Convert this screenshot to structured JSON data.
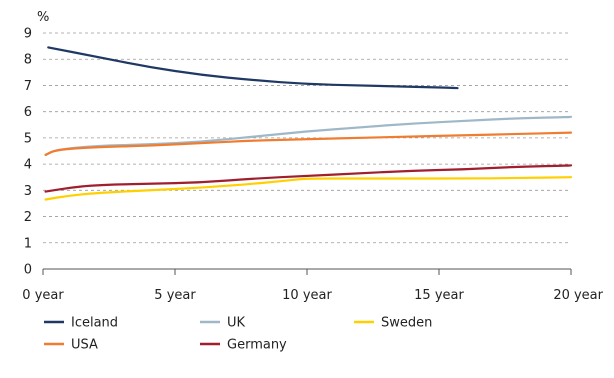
{
  "chart_data": {
    "type": "line",
    "ylabel": "%",
    "ylim": [
      0,
      9
    ],
    "yticks": [
      "0",
      "1",
      "2",
      "3",
      "4",
      "5",
      "6",
      "7",
      "8",
      "9"
    ],
    "xlim": [
      0,
      20
    ],
    "xticks": [
      {
        "value": 0,
        "label": "0 year"
      },
      {
        "value": 5,
        "label": "5 year"
      },
      {
        "value": 10,
        "label": "10 year"
      },
      {
        "value": 15,
        "label": "15 year"
      },
      {
        "value": 20,
        "label": "20 year"
      }
    ],
    "grid": true,
    "legend_position": "bottom",
    "series": [
      {
        "name": "Iceland",
        "color": "#1f3864",
        "points": [
          [
            0.2,
            8.45
          ],
          [
            2,
            8.1
          ],
          [
            4,
            7.7
          ],
          [
            6,
            7.4
          ],
          [
            8,
            7.2
          ],
          [
            10,
            7.05
          ],
          [
            12,
            7.0
          ],
          [
            14,
            6.95
          ],
          [
            15.7,
            6.9
          ]
        ]
      },
      {
        "name": "UK",
        "color": "#9fb8c8",
        "points": [
          [
            0.1,
            4.35
          ],
          [
            0.5,
            4.55
          ],
          [
            2,
            4.7
          ],
          [
            4,
            4.75
          ],
          [
            6,
            4.85
          ],
          [
            8,
            5.05
          ],
          [
            10,
            5.25
          ],
          [
            12,
            5.4
          ],
          [
            14,
            5.55
          ],
          [
            16,
            5.65
          ],
          [
            18,
            5.75
          ],
          [
            20,
            5.8
          ]
        ]
      },
      {
        "name": "Sweden",
        "color": "#ffd000",
        "points": [
          [
            0.1,
            2.65
          ],
          [
            1,
            2.8
          ],
          [
            2,
            2.9
          ],
          [
            4,
            3.0
          ],
          [
            6,
            3.1
          ],
          [
            8,
            3.25
          ],
          [
            9.5,
            3.4
          ],
          [
            10,
            3.45
          ],
          [
            12,
            3.45
          ],
          [
            14,
            3.45
          ],
          [
            16,
            3.45
          ],
          [
            18,
            3.47
          ],
          [
            20,
            3.5
          ]
        ]
      },
      {
        "name": "USA",
        "color": "#f07c30",
        "points": [
          [
            0.1,
            4.35
          ],
          [
            0.5,
            4.55
          ],
          [
            2,
            4.65
          ],
          [
            4,
            4.7
          ],
          [
            6,
            4.8
          ],
          [
            8,
            4.9
          ],
          [
            10,
            4.95
          ],
          [
            12,
            5.0
          ],
          [
            14,
            5.05
          ],
          [
            16,
            5.1
          ],
          [
            18,
            5.15
          ],
          [
            20,
            5.2
          ]
        ]
      },
      {
        "name": "Germany",
        "color": "#a01e2e",
        "points": [
          [
            0.1,
            2.95
          ],
          [
            1,
            3.1
          ],
          [
            2,
            3.2
          ],
          [
            4,
            3.25
          ],
          [
            6,
            3.3
          ],
          [
            8,
            3.45
          ],
          [
            10,
            3.55
          ],
          [
            12,
            3.65
          ],
          [
            14,
            3.75
          ],
          [
            16,
            3.8
          ],
          [
            18,
            3.9
          ],
          [
            20,
            3.95
          ]
        ]
      }
    ]
  }
}
